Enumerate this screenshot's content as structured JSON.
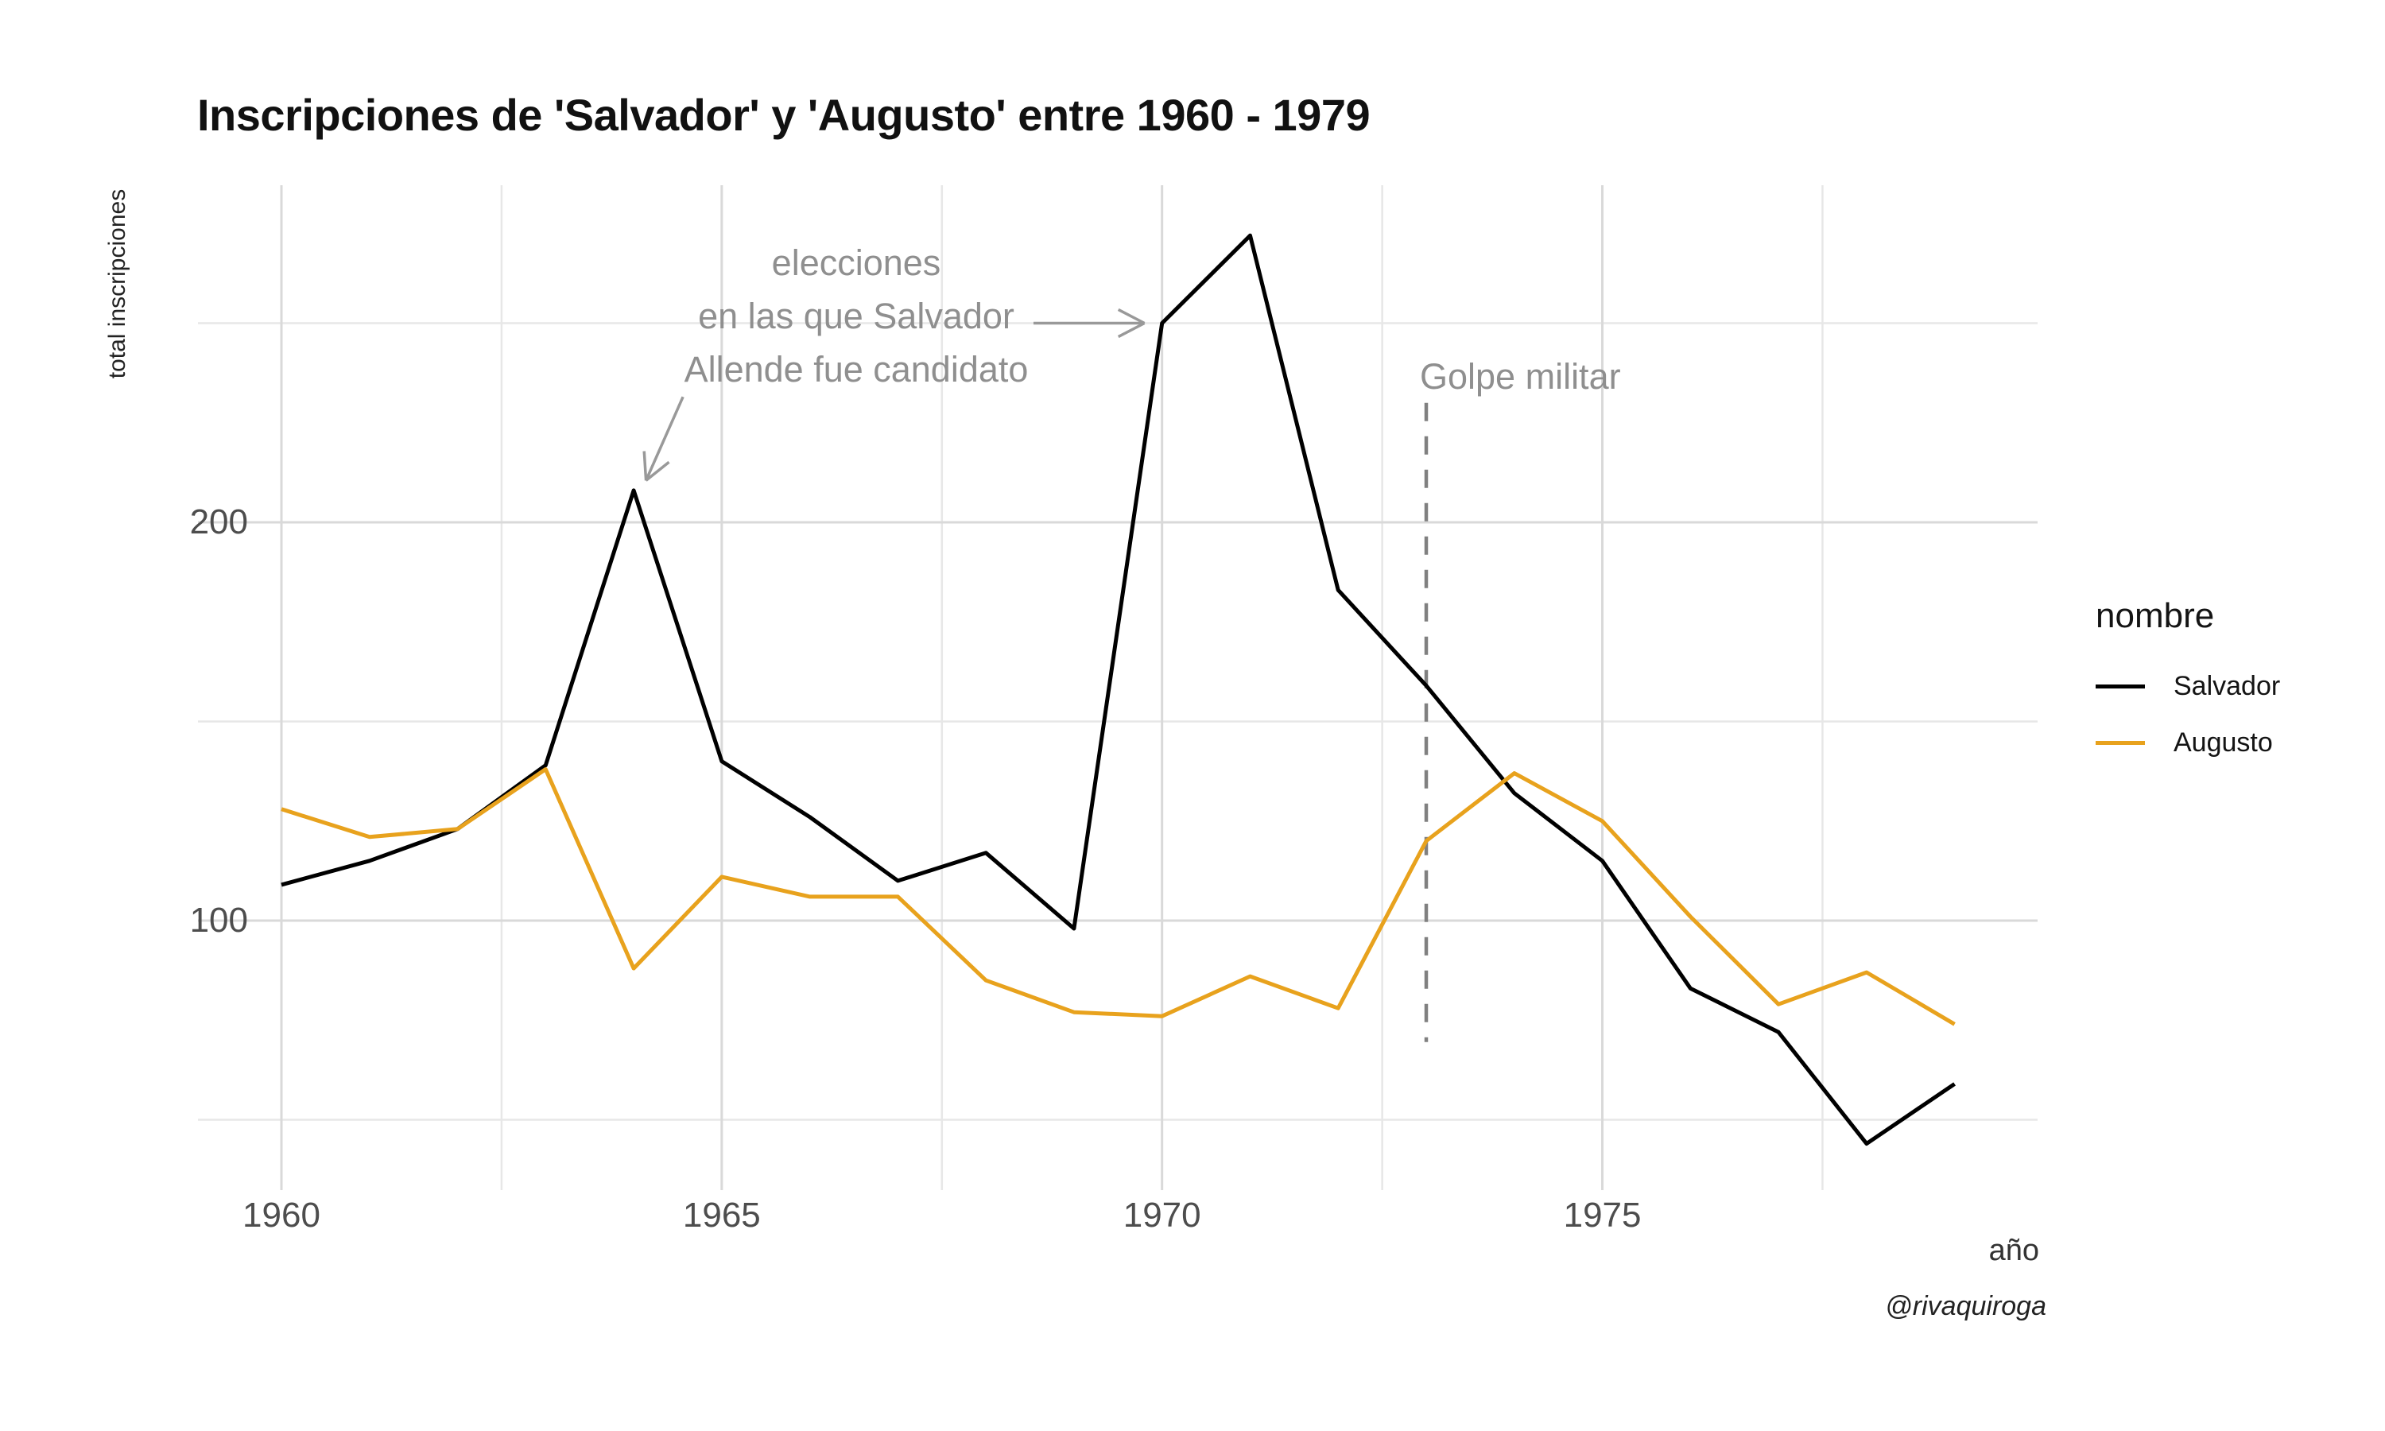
{
  "title": "Inscripciones de 'Salvador' y 'Augusto' entre 1960 - 1979",
  "attribution": "@rivaquiroga",
  "chart_data": {
    "type": "line",
    "title": "Inscripciones de 'Salvador' y 'Augusto' entre 1960 - 1979",
    "xlabel": "año",
    "ylabel": "total inscripciones",
    "legend_title": "nombre",
    "legend_position": "right",
    "grid": "on",
    "x": [
      1960,
      1961,
      1962,
      1963,
      1964,
      1965,
      1966,
      1967,
      1968,
      1969,
      1970,
      1971,
      1972,
      1973,
      1974,
      1975,
      1976,
      1977,
      1978,
      1979
    ],
    "series": [
      {
        "name": "Salvador",
        "color": "#000000",
        "values": [
          109,
          115,
          123,
          139,
          208,
          140,
          126,
          110,
          117,
          98,
          250,
          272,
          183,
          159,
          132,
          115,
          83,
          72,
          44,
          59
        ]
      },
      {
        "name": "Augusto",
        "color": "#E8A21D",
        "values": [
          128,
          121,
          123,
          138,
          88,
          111,
          106,
          106,
          85,
          77,
          76,
          86,
          78,
          120,
          137,
          125,
          101,
          79,
          87,
          74
        ]
      }
    ],
    "x_ticks": [
      1960,
      1965,
      1970,
      1975
    ],
    "x_minor_ticks": [
      1962.5,
      1967.5,
      1972.5,
      1977.5
    ],
    "y_ticks": [
      100,
      200
    ],
    "y_minor_ticks": [
      50,
      150,
      250
    ],
    "xlim": [
      1959.05,
      1979.95
    ],
    "ylim": [
      32,
      285
    ],
    "annotations": {
      "elecciones": {
        "lines": [
          "elecciones",
          "en las que Salvador",
          "Allende fue candidato"
        ],
        "color": "#8f8f8f",
        "points_to": [
          {
            "year": 1970,
            "value": 250
          },
          {
            "year": 1964,
            "value": 208
          }
        ]
      },
      "golpe": {
        "text": "Golpe militar",
        "color": "#8f8f8f",
        "year": 1973,
        "dashed_line": {
          "x": 1973,
          "value_top": 230,
          "value_bottom": 69.5
        }
      },
      "arrows": [
        {
          "name": "arrow-to-1970-peak",
          "from": [
            1968.54,
            250
          ],
          "to": [
            1969.8,
            250
          ]
        },
        {
          "name": "arrow-to-1964-peak",
          "from": [
            1964.56,
            231.5
          ],
          "to": [
            1964.14,
            210.5
          ]
        }
      ]
    },
    "style": {
      "line_width": 5,
      "grid_major_color": "#d9d9d9",
      "grid_minor_color": "#e7e7e7",
      "annotation_color": "#8f8f8f",
      "arrow_color": "#999999",
      "dashed_line_color": "#808080",
      "tick_label_color": "#4d4d4d",
      "background": "#ffffff"
    }
  }
}
